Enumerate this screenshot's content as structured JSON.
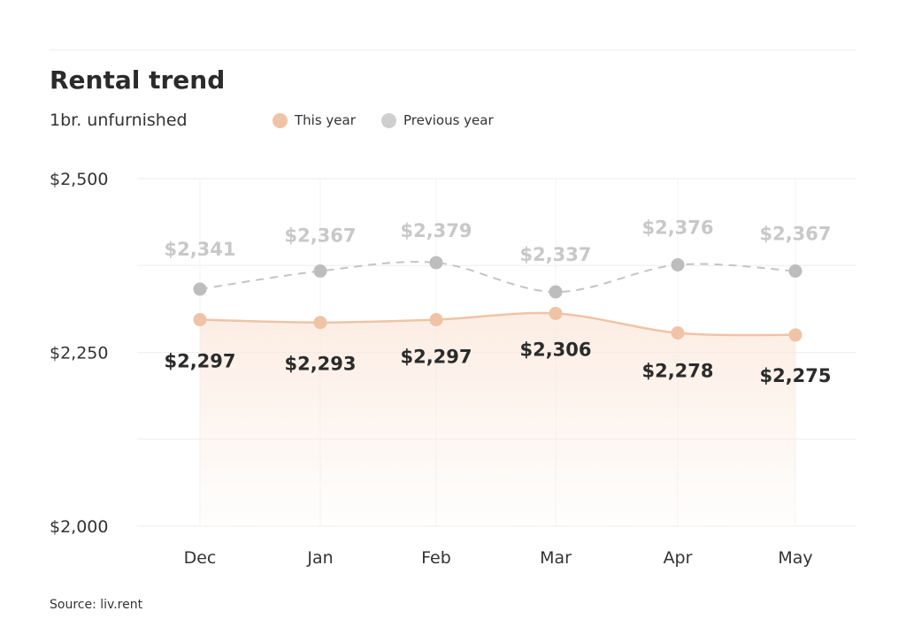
{
  "header": {
    "title": "Rental trend",
    "subtitle": "1br. unfurnished"
  },
  "legend": {
    "this_year": "This year",
    "previous_year": "Previous year"
  },
  "source": "Source: liv.rent",
  "colors": {
    "this_year": "#f0c3a6",
    "previous_year": "#cfcfcf",
    "area": "#fbe7da",
    "grid": "#eeeeee"
  },
  "chart_data": {
    "type": "line",
    "title": "Rental trend",
    "subtitle": "1br. unfurnished",
    "categories": [
      "Dec",
      "Jan",
      "Feb",
      "Mar",
      "Apr",
      "May"
    ],
    "y_ticks": [
      2000,
      2250,
      2500
    ],
    "y_tick_labels": [
      "$2,000",
      "$2,250",
      "$2,500"
    ],
    "ylim": [
      2000,
      2500
    ],
    "grid": true,
    "legend_position": "top",
    "series": [
      {
        "name": "This year",
        "values": [
          2297,
          2293,
          2297,
          2306,
          2278,
          2275
        ],
        "labels": [
          "$2,297",
          "$2,293",
          "$2,297",
          "$2,306",
          "$2,278",
          "$2,275"
        ],
        "style": "solid-with-area"
      },
      {
        "name": "Previous year",
        "values": [
          2341,
          2367,
          2379,
          2337,
          2376,
          2367
        ],
        "labels": [
          "$2,341",
          "$2,367",
          "$2,379",
          "$2,337",
          "$2,376",
          "$2,367"
        ],
        "style": "dashed"
      }
    ]
  }
}
